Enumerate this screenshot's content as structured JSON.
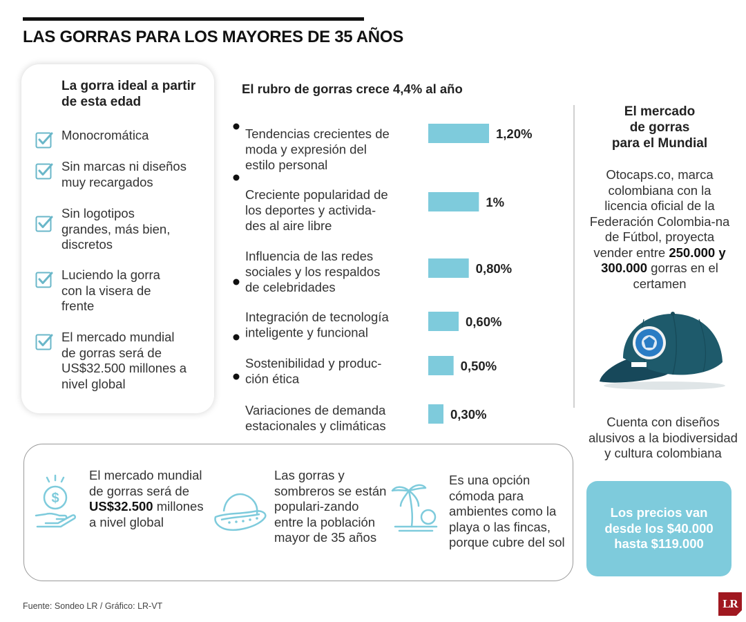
{
  "header": {
    "title": "LAS GORRAS PARA LOS MAYORES DE 35 AÑOS"
  },
  "left_card": {
    "title": "La gorra ideal a partir de esta edad",
    "items": [
      "Monocromática",
      "Sin marcas ni diseños\nmuy recargados",
      "Sin logotipos\ngrandes, más bien,\ndiscretos",
      "Luciendo la gorra\ncon la visera de\nfrente",
      "El mercado mundial\nde gorras será de\nUS$32.500 millones a\nnivel global"
    ]
  },
  "chart_data": {
    "type": "bar",
    "orientation": "horizontal",
    "title": "El rubro de gorras crece 4,4% al año",
    "categories": [
      "Tendencias crecientes de moda y expresión del estilo personal",
      "Creciente popularidad de los deportes y actividades al aire libre",
      "Influencia de las redes sociales y los respaldos de celebridades",
      "Integración de tecnología inteligente y funcional",
      "Sostenibilidad y producción ética",
      "Variaciones de demanda estacionales y climáticas"
    ],
    "category_lines": [
      [
        "Tendencias crecientes de",
        "moda y expresión del",
        "estilo personal"
      ],
      [
        "Creciente popularidad de",
        "los deportes y activida-",
        "des al aire libre"
      ],
      [
        "Influencia de las redes",
        "sociales y los respaldos",
        "de celebridades"
      ],
      [
        "Integración de tecnología",
        "inteligente y funcional"
      ],
      [
        "Sostenibilidad y produc-",
        "ción ética"
      ],
      [
        "Variaciones de demanda",
        "estacionales y climáticas"
      ]
    ],
    "values": [
      1.2,
      1.0,
      0.8,
      0.6,
      0.5,
      0.3
    ],
    "value_labels": [
      "1,20%",
      "1%",
      "0,80%",
      "0,60%",
      "0,50%",
      "0,30%"
    ],
    "unit": "%",
    "bar_color": "#7ecbdc",
    "xlim": [
      0,
      1.2
    ]
  },
  "right_column": {
    "title": "El mercado\nde gorras\npara el Mundial",
    "body_pre": "Otocaps.co, marca colombiana con la licencia oficial de la Federación Colombia-na de Fútbol, proyecta vender entre ",
    "body_bold": "250.000 y 300.000",
    "body_post": " gorras en el certamen",
    "body2": "Cuenta con diseños\nalusivos a la biodiversidad\ny cultura colombiana",
    "price": "Los precios van\ndesde los $40.000\nhasta $119.000"
  },
  "bottom": {
    "item1_pre": "El mercado mundial de gorras será de ",
    "item1_bold": "US$32.500",
    "item1_post": " millones a nivel global",
    "item2": "Las gorras y sombreros se están populari-zando entre la población mayor de 35 años",
    "item3": "Es una opción cómoda para ambientes como la playa o las fincas, porque cubre del sol"
  },
  "footer": {
    "source": "Fuente: Sondeo LR / Gráfico: LR-VT",
    "logo": "LR"
  },
  "colors": {
    "accent": "#7ecbdc",
    "cap": "#1e5a6b",
    "logo": "#a01820"
  }
}
